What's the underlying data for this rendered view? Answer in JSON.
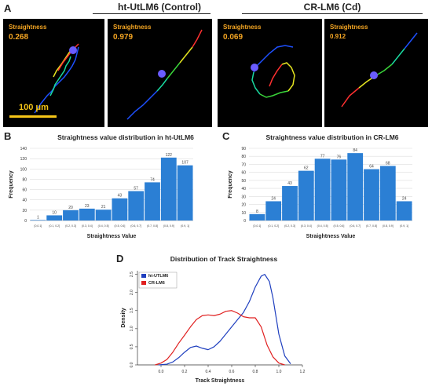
{
  "panel_a": {
    "letter": "A",
    "groups": [
      {
        "title": "ht-UtLM6 (Control)"
      },
      {
        "title": "CR-LM6 (Cd)"
      }
    ],
    "tiles": [
      {
        "label": "Straightness",
        "value": "0.268"
      },
      {
        "label": "Straightness",
        "value": "0.979"
      },
      {
        "label": "Straightness",
        "value": "0.069"
      },
      {
        "label": "Straightness",
        "value": "0.912"
      }
    ],
    "scale_bar": "100 μm"
  },
  "panel_b": {
    "letter": "B"
  },
  "panel_c": {
    "letter": "C"
  },
  "panel_d": {
    "letter": "D"
  },
  "colors": {
    "bar": "#2b7fd4",
    "control_line": "#1f3fbf",
    "cd_line": "#e02020",
    "label_yellow": "#f5a623"
  },
  "chart_data": [
    {
      "type": "bar",
      "title": "Straightness value distribution in ht-UtLM6",
      "xlabel": "Straightness Value",
      "ylabel": "Frequency",
      "categories": [
        "[0,0.1]",
        "(0.1, 0.2]",
        "(0.2, 0.3]",
        "(0.3, 0.4]",
        "(0.4, 0.5]",
        "(0.5, 0.6]",
        "(0.6, 0.7]",
        "(0.7, 0.8]",
        "(0.8, 0.9]",
        "(0.9, 1]"
      ],
      "values": [
        1,
        10,
        20,
        23,
        21,
        43,
        57,
        74,
        122,
        107
      ],
      "ylim": [
        0,
        140
      ],
      "yticks": [
        0,
        20,
        40,
        60,
        80,
        100,
        120,
        140
      ],
      "grid": "horizontal"
    },
    {
      "type": "bar",
      "title": "Straightness value distribution in CR-LM6",
      "xlabel": "Straightness Value",
      "ylabel": "Frequency",
      "categories": [
        "[0,0.1]",
        "(0.1, 0.2]",
        "(0.2, 0.3]",
        "(0.3, 0.4]",
        "(0.4, 0.5]",
        "(0.5, 0.6]",
        "(0.6, 0.7]",
        "(0.7, 0.8]",
        "(0.8, 0.9]",
        "(0.9, 1]"
      ],
      "values": [
        8,
        24,
        43,
        62,
        77,
        76,
        84,
        64,
        68,
        24
      ],
      "ylim": [
        0,
        90
      ],
      "yticks": [
        0,
        10,
        20,
        30,
        40,
        50,
        60,
        70,
        80,
        90
      ],
      "grid": "horizontal"
    },
    {
      "type": "line",
      "title": "Distribution of Track Straightness",
      "xlabel": "Track Straightness",
      "ylabel": "Density",
      "xlim": [
        -0.2,
        1.2
      ],
      "ylim": [
        0,
        2.6
      ],
      "xticks": [
        0.0,
        0.2,
        0.4,
        0.6,
        0.8,
        1.0,
        1.2
      ],
      "yticks": [
        0.0,
        0.5,
        1.0,
        1.5,
        2.0,
        2.5
      ],
      "legend": "top-left",
      "series": [
        {
          "name": "ht-UTLM6",
          "color": "#1f3fbf",
          "x": [
            -0.02,
            0.05,
            0.1,
            0.15,
            0.2,
            0.25,
            0.3,
            0.35,
            0.4,
            0.45,
            0.5,
            0.55,
            0.6,
            0.65,
            0.7,
            0.75,
            0.8,
            0.85,
            0.88,
            0.92,
            0.95,
            1.0,
            1.05,
            1.1
          ],
          "y": [
            0.0,
            0.02,
            0.08,
            0.2,
            0.35,
            0.48,
            0.52,
            0.46,
            0.42,
            0.5,
            0.65,
            0.85,
            1.05,
            1.25,
            1.45,
            1.75,
            2.15,
            2.45,
            2.5,
            2.3,
            1.85,
            0.85,
            0.25,
            0.03
          ]
        },
        {
          "name": "CR-LM6",
          "color": "#e02020",
          "x": [
            -0.05,
            0.0,
            0.05,
            0.1,
            0.15,
            0.2,
            0.25,
            0.3,
            0.35,
            0.4,
            0.45,
            0.5,
            0.55,
            0.6,
            0.65,
            0.7,
            0.75,
            0.8,
            0.85,
            0.9,
            0.95,
            1.0,
            1.05
          ],
          "y": [
            0.0,
            0.05,
            0.15,
            0.35,
            0.6,
            0.82,
            1.05,
            1.25,
            1.36,
            1.38,
            1.36,
            1.4,
            1.48,
            1.5,
            1.43,
            1.33,
            1.3,
            1.3,
            1.05,
            0.55,
            0.22,
            0.05,
            0.0
          ]
        }
      ]
    }
  ]
}
